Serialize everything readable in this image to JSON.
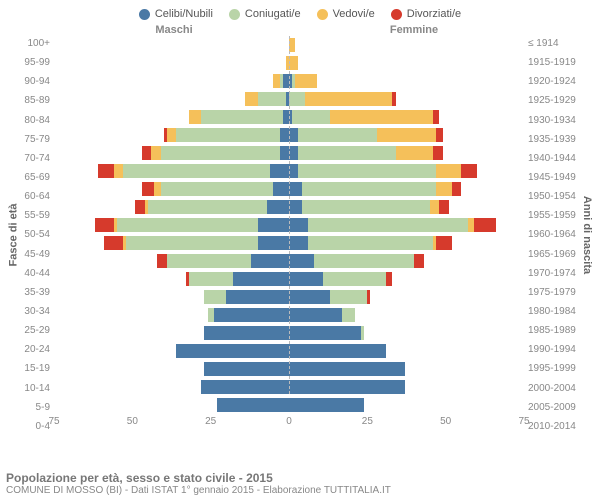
{
  "legend": [
    {
      "label": "Celibi/Nubili",
      "color": "#4a79a5"
    },
    {
      "label": "Coniugati/e",
      "color": "#b9d4a8"
    },
    {
      "label": "Vedovi/e",
      "color": "#f5c05a"
    },
    {
      "label": "Divorziati/e",
      "color": "#d63a2c"
    }
  ],
  "headers": {
    "male": "Maschi",
    "female": "Femmine"
  },
  "yaxis": {
    "left_label": "Fasce di età",
    "right_label": "Anni di nascita"
  },
  "xaxis": {
    "ticks": [
      75,
      50,
      25,
      0,
      25,
      50,
      75
    ],
    "max": 75
  },
  "colors": {
    "celibi": "#4a79a5",
    "coniugati": "#b9d4a8",
    "vedovi": "#f5c05a",
    "divorziati": "#d63a2c",
    "grid": "#e0e0e0",
    "centerline": "#bbbbbb",
    "text": "#888888",
    "bg": "#ffffff"
  },
  "footer": {
    "title": "Popolazione per età, sesso e stato civile - 2015",
    "subtitle": "COMUNE DI MOSSO (BI) - Dati ISTAT 1° gennaio 2015 - Elaborazione TUTTITALIA.IT"
  },
  "rows": [
    {
      "age": "100+",
      "year": "≤ 1914",
      "m": [
        0,
        0,
        0,
        0
      ],
      "f": [
        0,
        0,
        2,
        0
      ]
    },
    {
      "age": "95-99",
      "year": "1915-1919",
      "m": [
        0,
        0,
        1,
        0
      ],
      "f": [
        0,
        0,
        3,
        0
      ]
    },
    {
      "age": "90-94",
      "year": "1920-1924",
      "m": [
        2,
        1,
        2,
        0
      ],
      "f": [
        1,
        1,
        7,
        0
      ]
    },
    {
      "age": "85-89",
      "year": "1925-1929",
      "m": [
        1,
        9,
        4,
        0
      ],
      "f": [
        0,
        5,
        28,
        1
      ]
    },
    {
      "age": "80-84",
      "year": "1930-1934",
      "m": [
        2,
        26,
        4,
        0
      ],
      "f": [
        1,
        12,
        33,
        2
      ]
    },
    {
      "age": "75-79",
      "year": "1935-1939",
      "m": [
        3,
        33,
        3,
        1
      ],
      "f": [
        3,
        25,
        19,
        2
      ]
    },
    {
      "age": "70-74",
      "year": "1940-1944",
      "m": [
        3,
        38,
        3,
        3
      ],
      "f": [
        3,
        31,
        12,
        3
      ]
    },
    {
      "age": "65-69",
      "year": "1945-1949",
      "m": [
        6,
        47,
        3,
        5
      ],
      "f": [
        3,
        44,
        8,
        5
      ]
    },
    {
      "age": "60-64",
      "year": "1950-1954",
      "m": [
        5,
        36,
        2,
        4
      ],
      "f": [
        4,
        43,
        5,
        3
      ]
    },
    {
      "age": "55-59",
      "year": "1955-1959",
      "m": [
        7,
        38,
        1,
        3
      ],
      "f": [
        4,
        41,
        3,
        3
      ]
    },
    {
      "age": "50-54",
      "year": "1960-1964",
      "m": [
        10,
        45,
        1,
        6
      ],
      "f": [
        6,
        51,
        2,
        7
      ]
    },
    {
      "age": "45-49",
      "year": "1965-1969",
      "m": [
        10,
        42,
        1,
        6
      ],
      "f": [
        6,
        40,
        1,
        5
      ]
    },
    {
      "age": "40-44",
      "year": "1970-1974",
      "m": [
        12,
        27,
        0,
        3
      ],
      "f": [
        8,
        32,
        0,
        3
      ]
    },
    {
      "age": "35-39",
      "year": "1975-1979",
      "m": [
        18,
        14,
        0,
        1
      ],
      "f": [
        11,
        20,
        0,
        2
      ]
    },
    {
      "age": "30-34",
      "year": "1980-1984",
      "m": [
        20,
        7,
        0,
        0
      ],
      "f": [
        13,
        12,
        0,
        1
      ]
    },
    {
      "age": "25-29",
      "year": "1985-1989",
      "m": [
        24,
        2,
        0,
        0
      ],
      "f": [
        17,
        4,
        0,
        0
      ]
    },
    {
      "age": "20-24",
      "year": "1990-1994",
      "m": [
        27,
        0,
        0,
        0
      ],
      "f": [
        23,
        1,
        0,
        0
      ]
    },
    {
      "age": "15-19",
      "year": "1995-1999",
      "m": [
        36,
        0,
        0,
        0
      ],
      "f": [
        31,
        0,
        0,
        0
      ]
    },
    {
      "age": "10-14",
      "year": "2000-2004",
      "m": [
        27,
        0,
        0,
        0
      ],
      "f": [
        37,
        0,
        0,
        0
      ]
    },
    {
      "age": "5-9",
      "year": "2005-2009",
      "m": [
        28,
        0,
        0,
        0
      ],
      "f": [
        37,
        0,
        0,
        0
      ]
    },
    {
      "age": "0-4",
      "year": "2010-2014",
      "m": [
        23,
        0,
        0,
        0
      ],
      "f": [
        24,
        0,
        0,
        0
      ]
    }
  ]
}
